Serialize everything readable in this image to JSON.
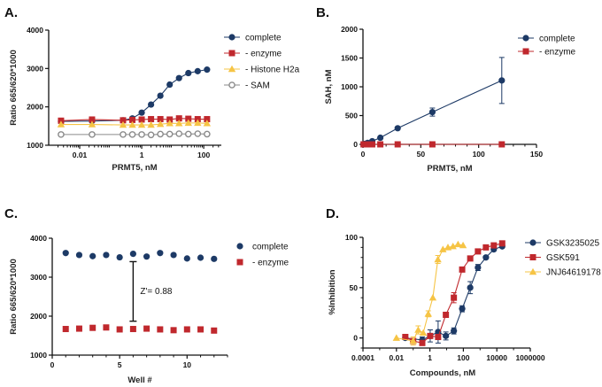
{
  "colors": {
    "navy": "#1d3a66",
    "red": "#c0282d",
    "yellow": "#f6c445",
    "gray": "#8a8a8a",
    "axis": "#111111"
  },
  "chart_data": [
    {
      "panel": "A.",
      "type": "line",
      "xlabel": "PRMT5, nM",
      "ylabel": "Ratio 665/620*1000",
      "xscale": "log",
      "xlim": [
        0.001,
        370
      ],
      "ylim": [
        1000,
        4000
      ],
      "xticks": [
        "0.01",
        "1",
        "100"
      ],
      "yticks": [
        "1000",
        "2000",
        "3000",
        "4000"
      ],
      "legend": "right",
      "series": [
        {
          "name": "complete",
          "color": "#1d3a66",
          "marker": "circle",
          "x": [
            0.0025,
            0.025,
            0.25,
            0.5,
            1,
            2,
            4,
            8,
            16,
            32,
            64,
            128
          ],
          "y": [
            1620,
            1630,
            1650,
            1700,
            1850,
            2060,
            2290,
            2580,
            2750,
            2880,
            2930,
            2970
          ]
        },
        {
          "name": "- enzyme",
          "color": "#c0282d",
          "marker": "square",
          "x": [
            0.0025,
            0.025,
            0.25,
            0.5,
            1,
            2,
            4,
            8,
            16,
            32,
            64,
            128
          ],
          "y": [
            1640,
            1670,
            1650,
            1660,
            1670,
            1680,
            1680,
            1670,
            1700,
            1690,
            1680,
            1680
          ]
        },
        {
          "name": "- Histone H2a",
          "color": "#f6c445",
          "marker": "triangle",
          "x": [
            0.0025,
            0.025,
            0.25,
            0.5,
            1,
            2,
            4,
            8,
            16,
            32,
            64,
            128
          ],
          "y": [
            1540,
            1540,
            1530,
            1530,
            1530,
            1530,
            1550,
            1570,
            1570,
            1580,
            1580,
            1570
          ]
        },
        {
          "name": "- SAM",
          "color": "#8a8a8a",
          "marker": "open-circle",
          "x": [
            0.0025,
            0.025,
            0.25,
            0.5,
            1,
            2,
            4,
            8,
            16,
            32,
            64,
            128
          ],
          "y": [
            1280,
            1280,
            1280,
            1280,
            1280,
            1270,
            1290,
            1290,
            1300,
            1290,
            1300,
            1290
          ]
        }
      ]
    },
    {
      "panel": "B.",
      "type": "line",
      "xlabel": "PRMT5, nM",
      "ylabel": "SAH, nM",
      "xscale": "linear",
      "xlim": [
        0,
        150
      ],
      "ylim": [
        0,
        2000
      ],
      "xticks": [
        "0",
        "50",
        "100",
        "150"
      ],
      "yticks": [
        "0",
        "500",
        "1000",
        "1500",
        "2000"
      ],
      "legend": "top-right",
      "series": [
        {
          "name": "complete",
          "color": "#1d3a66",
          "marker": "circle",
          "x": [
            0.5,
            1,
            2,
            4,
            8,
            15,
            30,
            60,
            120
          ],
          "y": [
            0,
            5,
            10,
            25,
            55,
            115,
            280,
            560,
            1110
          ],
          "error": [
            0,
            0,
            0,
            0,
            0,
            0,
            20,
            70,
            400
          ]
        },
        {
          "name": "- enzyme",
          "color": "#c0282d",
          "marker": "square",
          "x": [
            0.5,
            1,
            2,
            4,
            8,
            15,
            30,
            60,
            120
          ],
          "y": [
            0,
            0,
            0,
            0,
            0,
            0,
            0,
            0,
            0
          ]
        }
      ]
    },
    {
      "panel": "C.",
      "type": "scatter",
      "xlabel": "Well #",
      "ylabel": "Ratio 665/620*1000",
      "xscale": "linear",
      "xlim": [
        0,
        13
      ],
      "ylim": [
        1000,
        4000
      ],
      "xticks": [
        "0",
        "5",
        "10"
      ],
      "yticks": [
        "1000",
        "2000",
        "3000",
        "4000"
      ],
      "legend": "right",
      "annotation": {
        "text": "Z'= 0.88",
        "x": 6,
        "y_low": 1870,
        "y_high": 3400
      },
      "series": [
        {
          "name": "complete",
          "color": "#1d3a66",
          "marker": "circle",
          "x": [
            1,
            2,
            3,
            4,
            5,
            6,
            7,
            8,
            9,
            10,
            11,
            12
          ],
          "y": [
            3620,
            3570,
            3540,
            3570,
            3510,
            3600,
            3530,
            3620,
            3570,
            3480,
            3500,
            3470
          ]
        },
        {
          "name": "- enzyme",
          "color": "#c0282d",
          "marker": "square",
          "x": [
            1,
            2,
            3,
            4,
            5,
            6,
            7,
            8,
            9,
            10,
            11,
            12
          ],
          "y": [
            1670,
            1680,
            1700,
            1710,
            1660,
            1670,
            1680,
            1660,
            1640,
            1660,
            1660,
            1630
          ]
        }
      ]
    },
    {
      "panel": "D.",
      "type": "line",
      "xlabel": "Compounds, nM",
      "ylabel": "%Inhibition",
      "xscale": "log",
      "xlim": [
        0.0001,
        1000000
      ],
      "ylim": [
        -10,
        100
      ],
      "xticks": [
        "0.0001",
        "0.01",
        "1",
        "100",
        "10000",
        "1000000"
      ],
      "yticks": [
        "0",
        "50",
        "100"
      ],
      "legend": "right",
      "series": [
        {
          "name": "GSK3235025",
          "color": "#1d3a66",
          "marker": "circle",
          "x": [
            0.034,
            0.35,
            1.04,
            3.1,
            9,
            27,
            85,
            257,
            742,
            2230,
            6600,
            21000
          ],
          "y": [
            0,
            -2,
            2,
            6,
            2,
            7,
            29,
            50,
            70,
            80,
            88,
            91
          ],
          "error": [
            0,
            3,
            6,
            11,
            4,
            3,
            3,
            6,
            3,
            0,
            0,
            0
          ]
        },
        {
          "name": "GSK591",
          "color": "#c0282d",
          "marker": "square",
          "x": [
            0.034,
            0.1,
            0.35,
            1.04,
            3.1,
            9,
            27,
            85,
            257,
            742,
            2230,
            6600,
            21000
          ],
          "y": [
            1,
            -3,
            -5,
            2,
            1,
            23,
            40,
            68,
            79,
            86,
            90,
            92,
            94
          ],
          "error": [
            0,
            0,
            0,
            0,
            0,
            0,
            5,
            0,
            0,
            0,
            0,
            0,
            0
          ]
        },
        {
          "name": "JNJ64619178",
          "color": "#f6c445",
          "marker": "triangle",
          "x": [
            0.01,
            0.1,
            0.2,
            0.4,
            0.8,
            1.5,
            3,
            6,
            12,
            24,
            48,
            96
          ],
          "y": [
            0,
            -3,
            8,
            5,
            24,
            40,
            78,
            88,
            90,
            91,
            93,
            92
          ],
          "error": [
            0,
            4,
            4,
            0,
            3,
            0,
            4,
            0,
            0,
            0,
            0,
            0
          ]
        }
      ]
    }
  ]
}
